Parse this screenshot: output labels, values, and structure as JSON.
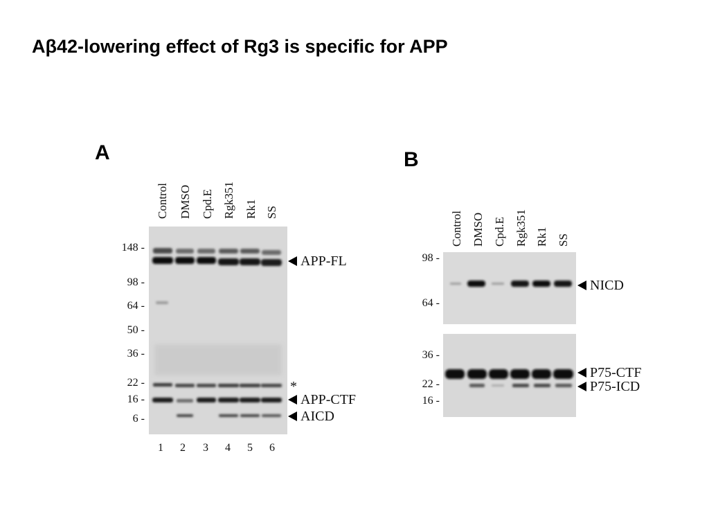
{
  "slide": {
    "title": "Aβ42-lowering effect of Rg3 is specific for APP"
  },
  "panel_a": {
    "letter": "A",
    "lanes": [
      "Control",
      "DMSO",
      "Cpd.E",
      "Rgk351",
      "Rk1",
      "SS"
    ],
    "lane_numbers": [
      "1",
      "2",
      "3",
      "4",
      "5",
      "6"
    ],
    "mw_markers": [
      "148 -",
      "98 -",
      "64 -",
      "50 -",
      "36 -",
      "22 -",
      "16 -",
      "6 -"
    ],
    "asterisk": "*",
    "bands": [
      {
        "label": "APP-FL"
      },
      {
        "label": "APP-CTF"
      },
      {
        "label": "AICD"
      }
    ]
  },
  "panel_b": {
    "letter": "B",
    "lanes": [
      "Control",
      "DMSO",
      "Cpd.E",
      "Rgk351",
      "Rk1",
      "SS"
    ],
    "upper_blot": {
      "mw_markers": [
        "98 -",
        "64 -"
      ],
      "bands": [
        {
          "label": "NICD"
        }
      ]
    },
    "lower_blot": {
      "mw_markers": [
        "36 -",
        "22 -",
        "16 -"
      ],
      "bands": [
        {
          "label": "P75-CTF"
        },
        {
          "label": "P75-ICD"
        }
      ]
    }
  }
}
